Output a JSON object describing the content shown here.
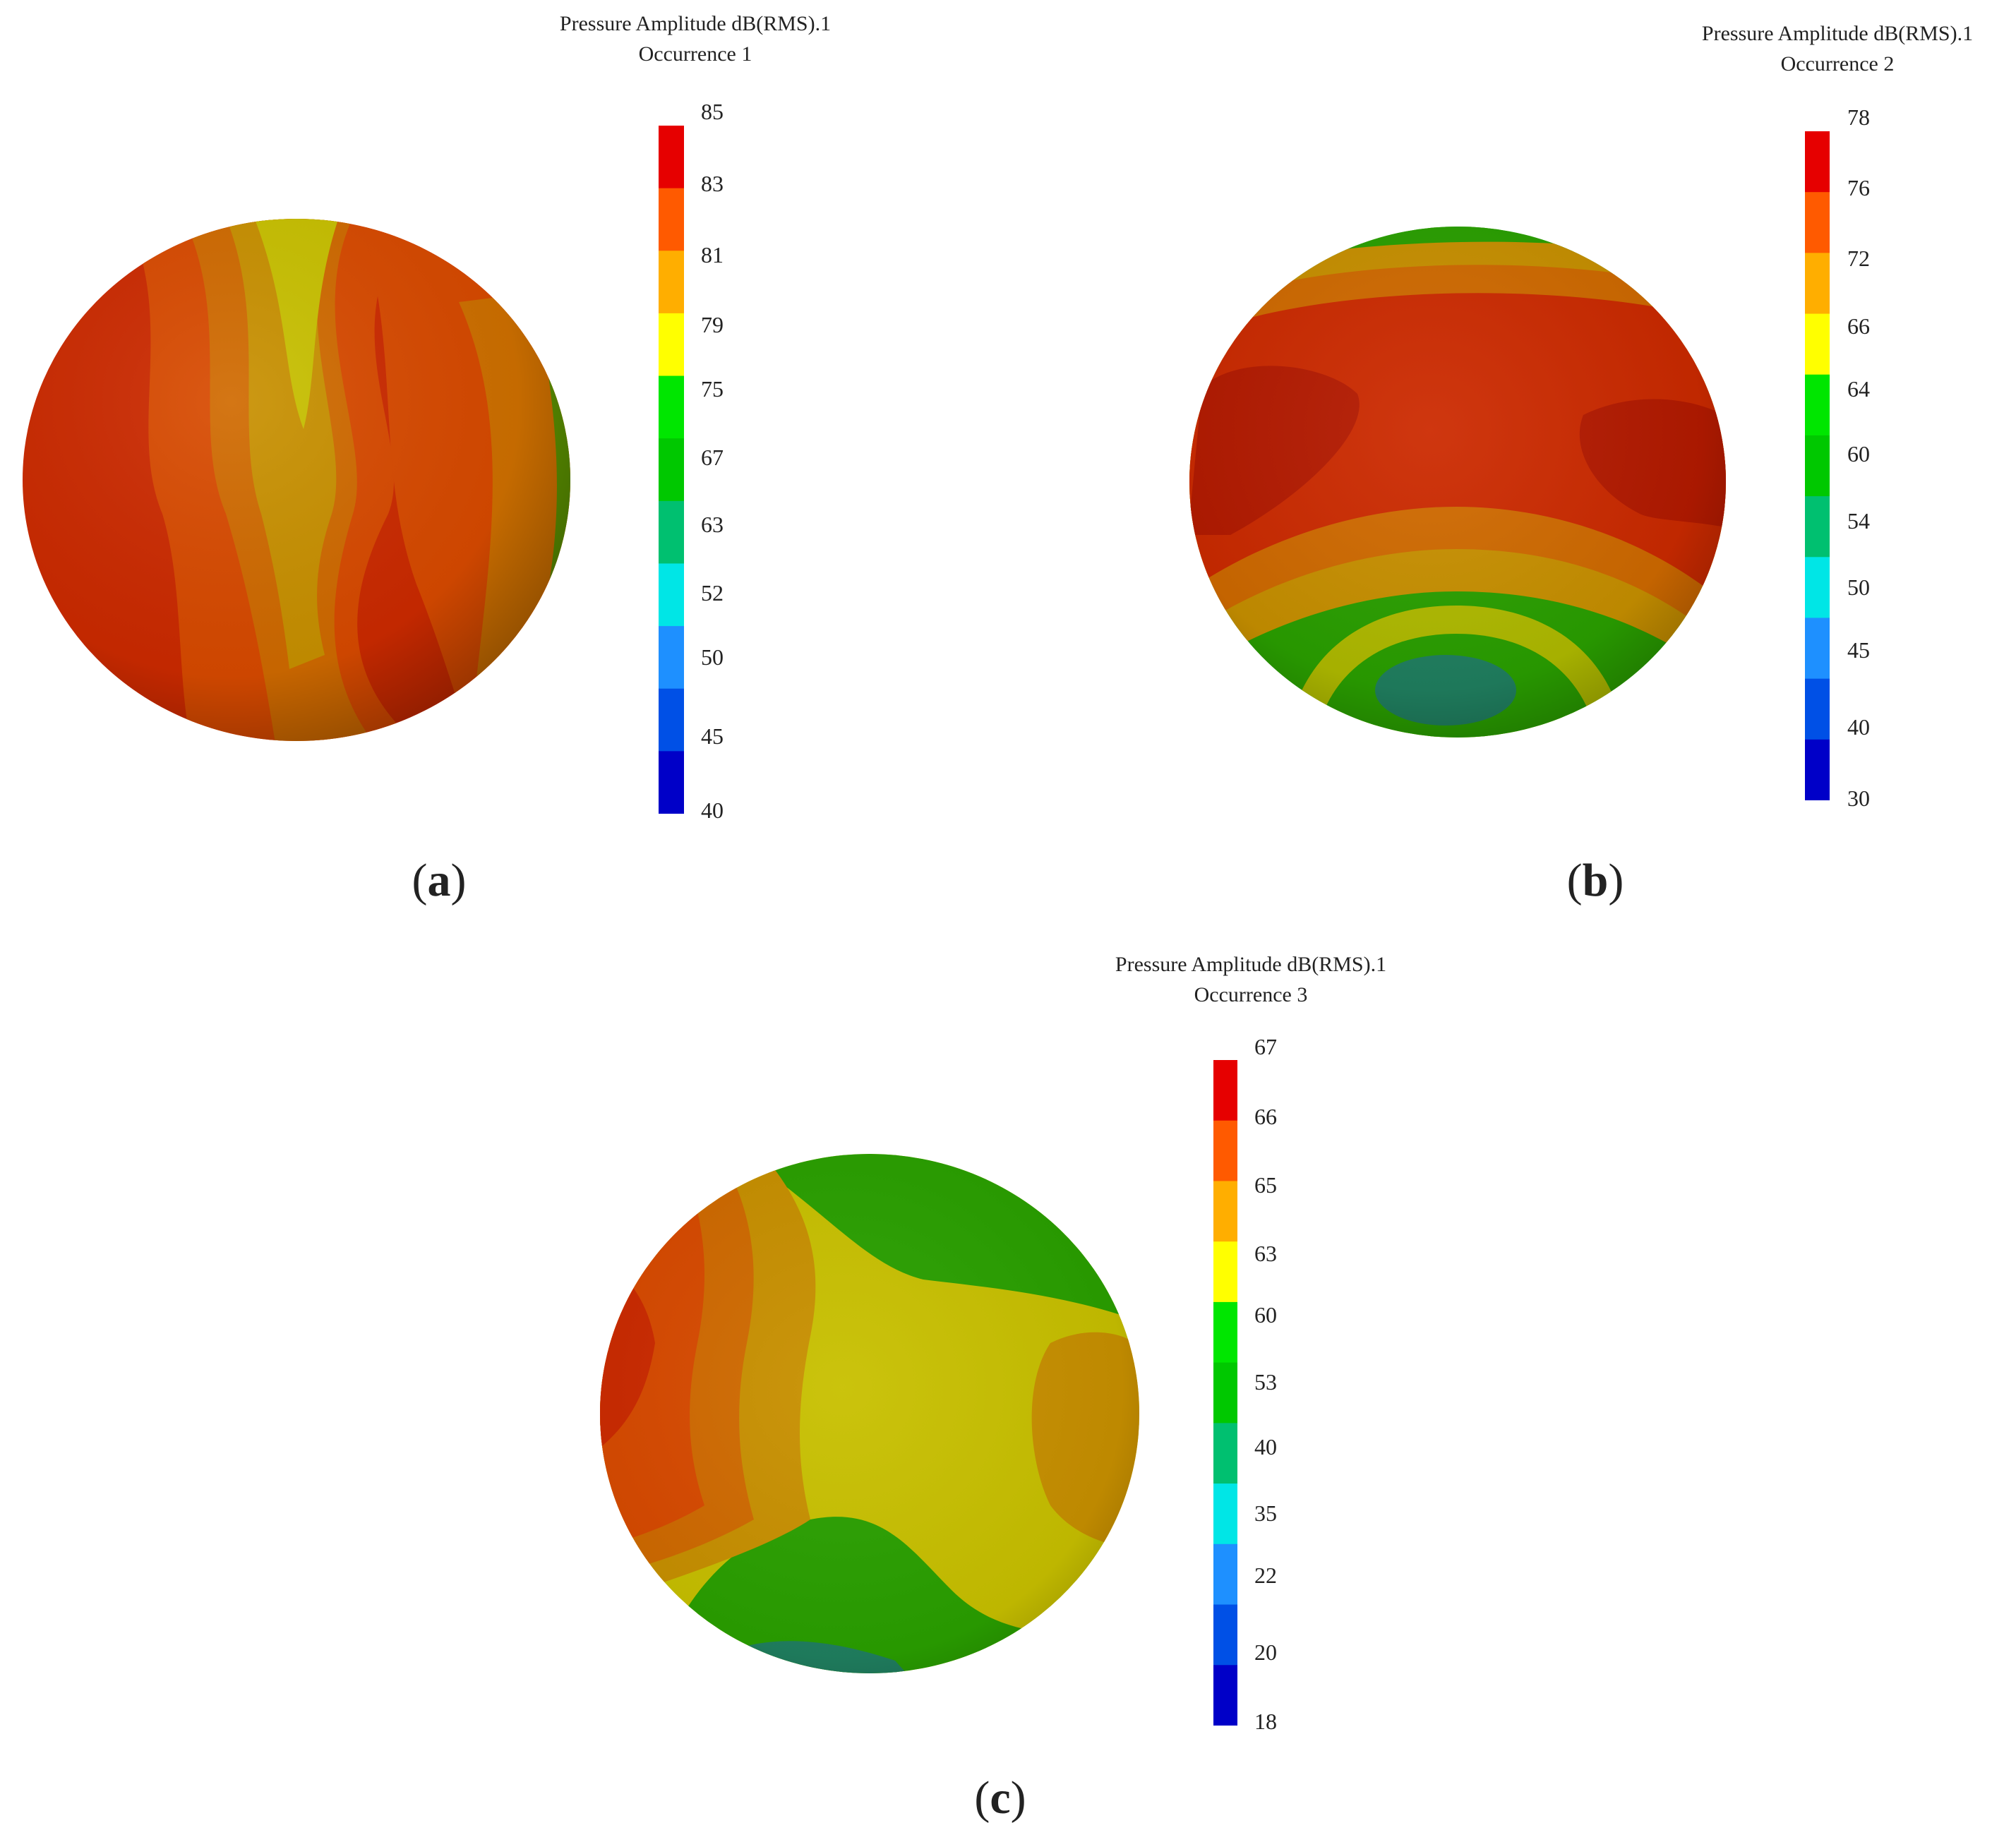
{
  "panels": [
    {
      "id": "a",
      "title_line1": "Pressure Amplitude dB(RMS).1",
      "title_line2": "Occurrence 1",
      "label": "a",
      "ticks": [
        "85",
        "83",
        "81",
        "79",
        "75",
        "67",
        "63",
        "52",
        "50",
        "45",
        "40"
      ]
    },
    {
      "id": "b",
      "title_line1": "Pressure Amplitude dB(RMS).1",
      "title_line2": "Occurrence 2",
      "label": "b",
      "ticks": [
        "78",
        "76",
        "72",
        "66",
        "64",
        "60",
        "54",
        "50",
        "45",
        "40",
        "30"
      ]
    },
    {
      "id": "c",
      "title_line1": "Pressure Amplitude dB(RMS).1",
      "title_line2": "Occurrence 3",
      "label": "c",
      "ticks": [
        "67",
        "66",
        "65",
        "63",
        "60",
        "53",
        "40",
        "35",
        "22",
        "20",
        "18"
      ]
    }
  ],
  "colorbar_colors": [
    "#e60000",
    "#ff5a00",
    "#ffae00",
    "#ffff00",
    "#00e600",
    "#00c800",
    "#00c070",
    "#00e6e6",
    "#1e90ff",
    "#0050e6",
    "#0000c8"
  ],
  "colors": {
    "dark_red": "#b41a00",
    "red": "#cc2a00",
    "orange_red": "#d84a00",
    "orange": "#d06a00",
    "amber": "#c89000",
    "yellow_olive": "#c8c000",
    "green": "#2aa000",
    "teal": "#208060"
  }
}
